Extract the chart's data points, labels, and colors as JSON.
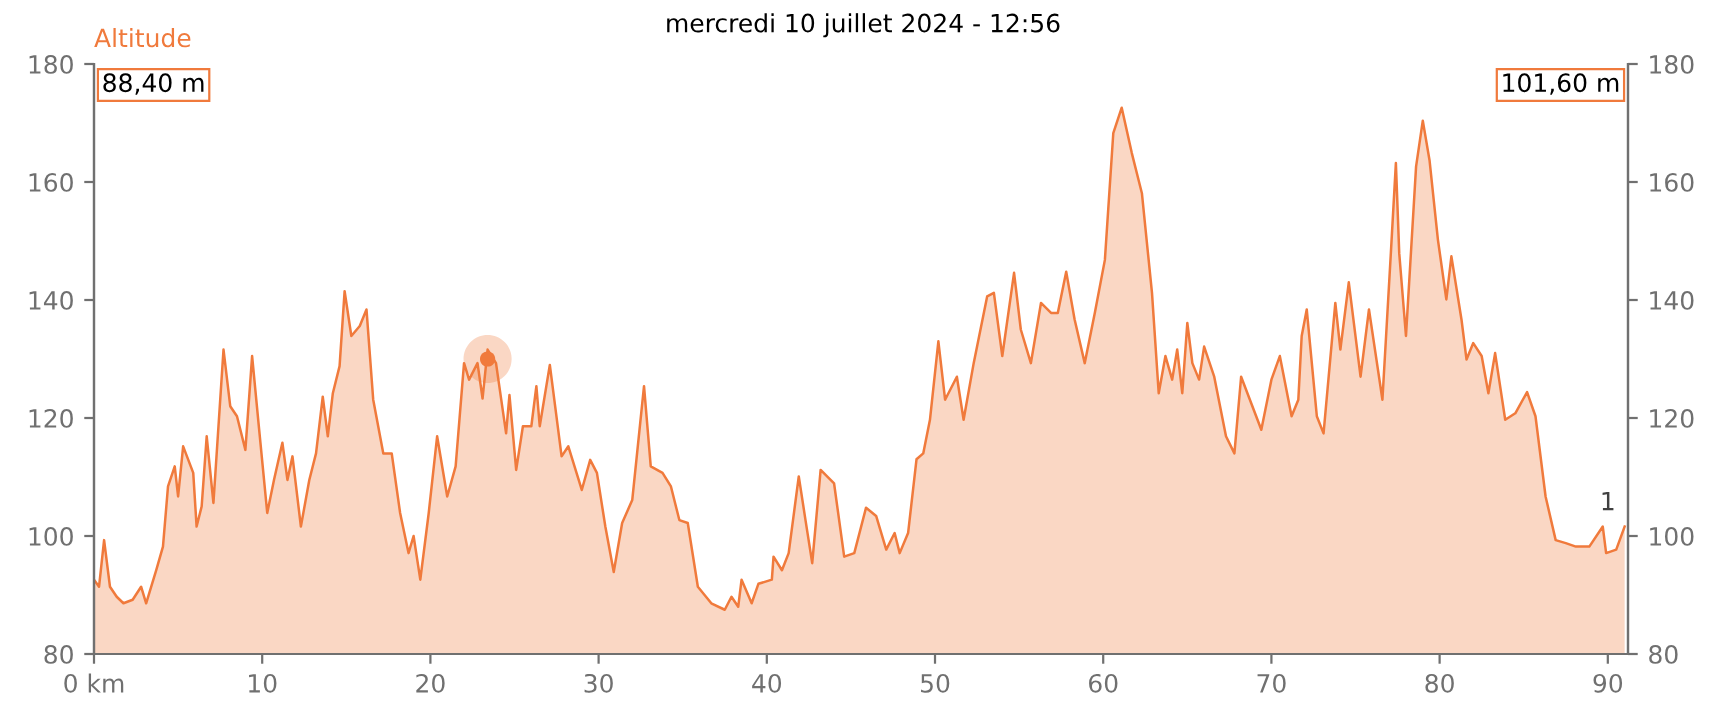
{
  "chart_data": {
    "type": "area",
    "title": "mercredi 10 juillet 2024 - 12:56",
    "ylabel": "Altitude",
    "xlim": [
      0,
      91.2
    ],
    "xticks": [
      {
        "value": 0,
        "label": "0 km"
      },
      10,
      20,
      30,
      40,
      50,
      60,
      70,
      80,
      90
    ],
    "ylim": [
      80,
      180
    ],
    "yticks": [
      80,
      100,
      120,
      140,
      160,
      180
    ],
    "y2lim": [
      80,
      180
    ],
    "y2ticks": [
      80,
      100,
      120,
      140,
      160,
      180
    ],
    "grid": false,
    "legend": false,
    "annotations": [
      "88,40 m",
      "101,60 m",
      "1"
    ],
    "series": [
      {
        "color": "#f07a3c",
        "x": [
          0,
          0.3,
          0.6,
          0.95,
          1.35,
          1.75,
          2.3,
          2.8,
          3.1,
          3.7,
          4.1,
          4.4,
          4.8,
          5.0,
          5.3,
          5.9,
          6.1,
          6.4,
          6.7,
          7.1,
          7.7,
          8.1,
          8.5,
          9.0,
          9.4,
          9.8,
          10.3,
          10.7,
          11.2,
          11.5,
          11.8,
          12.3,
          12.8,
          13.2,
          13.6,
          13.9,
          14.2,
          14.6,
          14.9,
          15.3,
          15.8,
          16.2,
          16.6,
          17.2,
          17.7,
          18.2,
          18.7,
          19.0,
          19.4,
          19.9,
          20.4,
          21.0,
          21.5,
          22.0,
          22.3,
          22.8,
          23.1,
          23.4,
          23.9,
          24.5,
          24.7,
          25.1,
          25.5,
          26.0,
          26.3,
          26.5,
          27.1,
          27.8,
          28.2,
          29.0,
          29.5,
          29.9,
          30.4,
          30.9,
          31.4,
          32.0,
          32.7,
          33.1,
          33.8,
          34.3,
          34.8,
          35.3,
          35.9,
          36.7,
          37.5,
          37.9,
          38.3,
          38.5,
          39.1,
          39.5,
          40.3,
          40.4,
          40.9,
          41.3,
          41.9,
          42.3,
          42.7,
          43.2,
          44.0,
          44.6,
          45.2,
          45.9,
          46.5,
          47.1,
          47.6,
          47.9,
          48.4,
          48.9,
          49.3,
          49.7,
          50.2,
          50.6,
          51.3,
          51.7,
          52.3,
          53.1,
          53.5,
          54.0,
          54.7,
          55.1,
          55.7,
          56.3,
          56.9,
          57.3,
          57.8,
          58.3,
          58.9,
          59.5,
          60.1,
          60.6,
          61.1,
          61.7,
          62.3,
          62.9,
          63.3,
          63.7,
          64.1,
          64.4,
          64.7,
          65.0,
          65.3,
          65.7,
          66.0,
          66.6,
          67.3,
          67.8,
          68.2,
          68.8,
          69.4,
          70.0,
          70.5,
          71.2,
          71.6,
          71.8,
          72.1,
          72.7,
          73.1,
          73.8,
          74.1,
          74.6,
          75.3,
          75.8,
          76.6,
          77.1,
          77.4,
          77.6,
          78.0,
          78.6,
          79.0,
          79.4,
          79.9,
          80.4,
          80.7,
          81.3,
          81.6,
          82.0,
          82.5,
          82.9,
          83.3,
          83.9,
          84.5,
          85.2,
          85.7,
          86.3,
          86.9,
          87.5,
          88.1,
          88.9,
          89.7,
          89.9,
          90.5,
          91.0
        ],
        "values": [
          92.6,
          91.4,
          99.3,
          91.4,
          89.7,
          88.6,
          89.2,
          91.4,
          88.6,
          94.2,
          98.2,
          108.4,
          111.8,
          106.7,
          115.2,
          110.7,
          101.6,
          105,
          116.9,
          105.6,
          131.6,
          122,
          120.3,
          114.6,
          130.5,
          118.6,
          103.9,
          109.5,
          115.8,
          109.5,
          113.5,
          101.6,
          109.5,
          114,
          123.6,
          116.9,
          124.2,
          128.8,
          141.5,
          133.9,
          135.6,
          138.4,
          123.1,
          114,
          114,
          103.9,
          97.1,
          100,
          92.6,
          103.9,
          116.9,
          106.7,
          111.8,
          129.3,
          126.5,
          129.3,
          123.3,
          131.6,
          129.3,
          117.4,
          123.9,
          111.2,
          118.6,
          118.6,
          125.4,
          118.6,
          129,
          113.5,
          115.2,
          107.8,
          112.9,
          110.7,
          101.6,
          93.9,
          102.2,
          106.1,
          125.4,
          111.8,
          110.7,
          108.4,
          102.7,
          102.2,
          91.4,
          88.6,
          87.5,
          89.7,
          88,
          92.6,
          88.6,
          91.9,
          92.6,
          96.5,
          94.2,
          97.1,
          110.1,
          102.7,
          95.4,
          111.2,
          108.9,
          96.5,
          97.1,
          104.8,
          103.4,
          97.7,
          100.5,
          97.1,
          100.5,
          113,
          114,
          119.7,
          133,
          123.1,
          127,
          119.7,
          129.3,
          140.6,
          141.2,
          130.5,
          144.6,
          135,
          129.3,
          139.5,
          137.8,
          137.8,
          144.8,
          136.7,
          129.3,
          137.8,
          146.8,
          168.3,
          172.6,
          164.9,
          158.1,
          141.2,
          124.2,
          130.5,
          126.5,
          131.6,
          124.2,
          136.1,
          129.3,
          126.5,
          132.1,
          127,
          116.9,
          114,
          127,
          122.5,
          118,
          126.5,
          130.5,
          120.3,
          123.1,
          133.9,
          138.4,
          120.3,
          117.4,
          139.5,
          131.6,
          143,
          127,
          138.4,
          123.1,
          147.9,
          163.2,
          147.9,
          133.9,
          162.6,
          170.4,
          163.7,
          150.2,
          140.1,
          147.4,
          136.7,
          129.9,
          132.7,
          130.5,
          124.2,
          131,
          119.7,
          120.8,
          124.4,
          120.3,
          106.7,
          99.3,
          98.8,
          98.2,
          98.2,
          101.6,
          97.1,
          97.7,
          101.6
        ]
      },
      {
        "type": "scatter",
        "color": "#f07a3c",
        "marker": "circle",
        "x": [
          23.4
        ],
        "values": [
          130
        ]
      }
    ]
  }
}
